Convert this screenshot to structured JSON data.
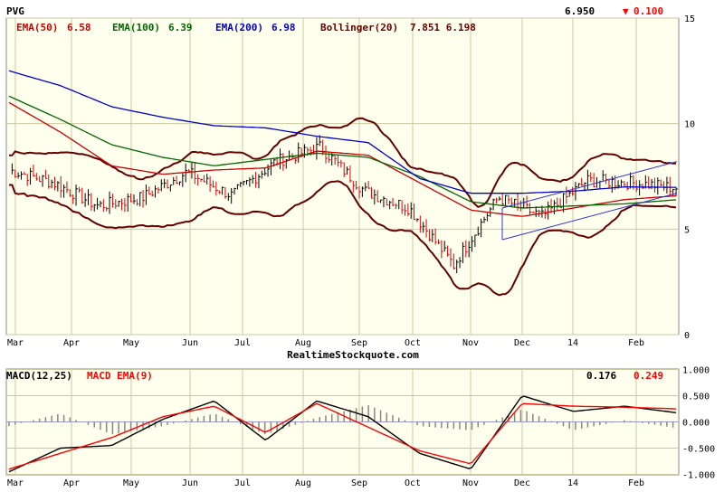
{
  "header": {
    "symbol": "PVG",
    "last_price": "6.950",
    "change_arrow": "▼",
    "change": "0.100",
    "change_color": "#ff0000"
  },
  "legend": {
    "ema50_label": "EMA(50)",
    "ema50_value": "6.58",
    "ema50_color": "#cc0000",
    "ema100_label": "EMA(100)",
    "ema100_value": "6.39",
    "ema100_color": "#006600",
    "ema200_label": "EMA(200)",
    "ema200_value": "6.98",
    "ema200_color": "#0000cc",
    "bollinger_label": "Bollinger(20)",
    "bollinger_value": "7.851 6.198",
    "bollinger_color": "#660000"
  },
  "watermark": "RealtimeStockquote.com",
  "macd_legend": {
    "macd_label": "MACD(12,25)",
    "signal_label": "MACD EMA(9)",
    "macd_value": "0.176",
    "signal_value": "0.249",
    "macd_color": "#000000",
    "signal_color": "#ff0000"
  },
  "chart_data": [
    {
      "type": "line",
      "title": "PVG",
      "x_labels": [
        "Mar",
        "Apr",
        "May",
        "Jun",
        "Jul",
        "Aug",
        "Sep",
        "Oct",
        "Nov",
        "Dec",
        "14",
        "Feb"
      ],
      "y_ticks": [
        "15",
        "10",
        "5",
        "0"
      ],
      "ylim": [
        0,
        15
      ],
      "grid": true,
      "series": [
        {
          "name": "EMA(50)",
          "color": "#cc0000",
          "values": [
            11.0,
            9.6,
            8.0,
            7.6,
            7.8,
            7.9,
            8.7,
            8.5,
            7.2,
            5.9,
            5.6,
            6.0,
            6.4,
            6.58
          ]
        },
        {
          "name": "EMA(100)",
          "color": "#006600",
          "values": [
            11.3,
            10.2,
            9.0,
            8.4,
            8.0,
            8.3,
            8.6,
            8.4,
            7.5,
            6.3,
            6.0,
            6.1,
            6.2,
            6.39
          ]
        },
        {
          "name": "EMA(200)",
          "color": "#0000cc",
          "values": [
            12.5,
            11.8,
            10.8,
            10.3,
            9.9,
            9.8,
            9.4,
            9.1,
            7.4,
            6.7,
            6.7,
            6.8,
            7.0,
            6.98
          ]
        }
      ],
      "price_points": [
        7.8,
        7.2,
        6.1,
        6.5,
        7.7,
        6.6,
        8.2,
        8.9,
        6.8,
        6.0,
        3.3,
        6.5,
        5.6,
        7.3,
        7.2,
        6.95
      ]
    },
    {
      "type": "line",
      "title": "MACD(12,25)",
      "x_labels": [
        "Mar",
        "Apr",
        "May",
        "Jun",
        "Jul",
        "Aug",
        "Sep",
        "Oct",
        "Nov",
        "Dec",
        "14",
        "Feb"
      ],
      "y_ticks": [
        "1.000",
        "0.500",
        "0.000",
        "-0.500",
        "-1.000"
      ],
      "ylim": [
        -1,
        1
      ],
      "grid": true,
      "series": [
        {
          "name": "MACD(12,25)",
          "color": "#000000",
          "values": [
            -0.95,
            -0.5,
            -0.45,
            0.05,
            0.4,
            -0.35,
            0.4,
            0.1,
            -0.6,
            -0.9,
            0.5,
            0.2,
            0.3,
            0.176
          ]
        },
        {
          "name": "MACD EMA(9)",
          "color": "#ff0000",
          "values": [
            -0.9,
            -0.6,
            -0.3,
            0.1,
            0.3,
            -0.2,
            0.35,
            -0.1,
            -0.55,
            -0.8,
            0.35,
            0.3,
            0.28,
            0.249
          ]
        }
      ]
    }
  ]
}
